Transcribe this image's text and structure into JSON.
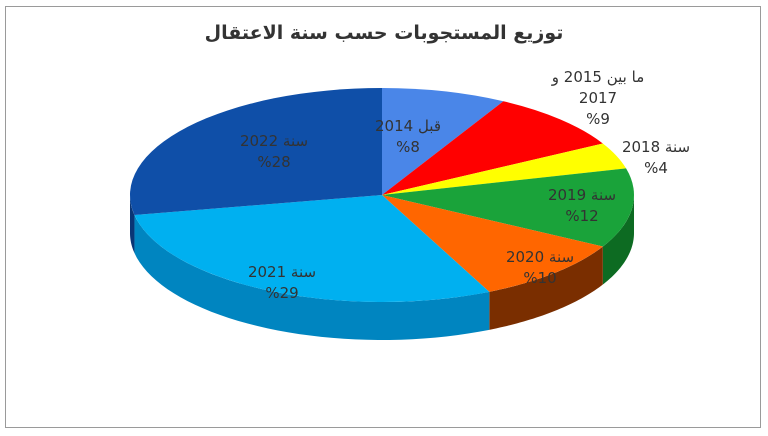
{
  "chart_data": {
    "type": "pie",
    "title": "توزيع المستجوبات حسب سنة الاعتقال",
    "slices": [
      {
        "label": "قبل 2014",
        "value": 8,
        "display": "%8",
        "color": "#4a86e8",
        "side": "#2e5fb0"
      },
      {
        "label": "ما بين 2015 و 2017",
        "label_lines": [
          "ما بين 2015 و",
          "2017"
        ],
        "value": 9,
        "display": "%9",
        "color": "#ff0000",
        "side": "#b30000"
      },
      {
        "label": "سنة 2018",
        "value": 4,
        "display": "%4",
        "color": "#ffff00",
        "side": "#b3b300"
      },
      {
        "label": "سنة 2019",
        "value": 12,
        "display": "%12",
        "color": "#1aa33a",
        "side": "#0d6b22"
      },
      {
        "label": "سنة 2020",
        "value": 10,
        "display": "%10",
        "color": "#ff6600",
        "side": "#7a2e00"
      },
      {
        "label": "سنة 2021",
        "value": 29,
        "display": "%29",
        "color": "#00b0f0",
        "side": "#0085c0"
      },
      {
        "label": "سنة 2022",
        "value": 28,
        "display": "%28",
        "color": "#0f4fa8",
        "side": "#0a3575"
      }
    ]
  }
}
